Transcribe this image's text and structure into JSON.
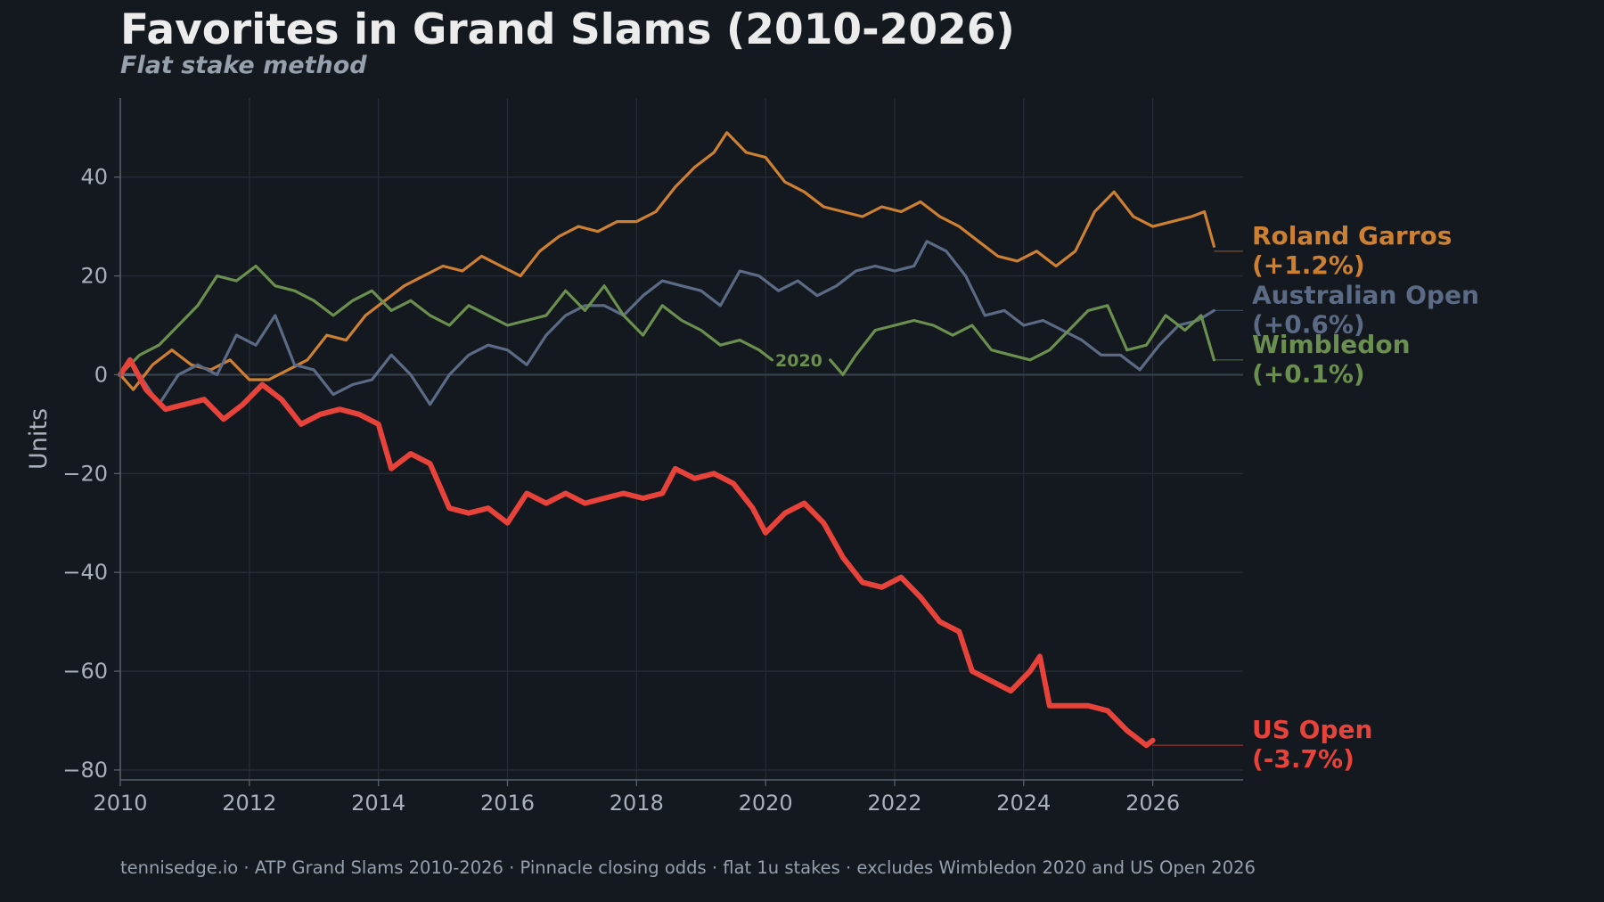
{
  "title": "Favorites in Grand Slams (2010-2026)",
  "subtitle": "Flat stake method",
  "footer": "tennisedge.io · ATP Grand Slams 2010-2026 · Pinnacle closing odds · flat 1u stakes · excludes Wimbledon 2020 and US Open 2026",
  "chart_data": {
    "type": "line",
    "title": "Favorites in Grand Slams (2010-2026)",
    "subtitle": "Flat stake method",
    "xlabel": "",
    "ylabel": "Units",
    "xlim": [
      2010,
      2027.4
    ],
    "ylim": [
      -82,
      56
    ],
    "x_ticks": [
      2010,
      2012,
      2014,
      2016,
      2018,
      2020,
      2022,
      2024,
      2026
    ],
    "x_tick_labels": [
      "2010",
      "2012",
      "2014",
      "2016",
      "2018",
      "2020",
      "2022",
      "2024",
      "2026"
    ],
    "y_ticks": [
      -80,
      -60,
      -40,
      -20,
      0,
      20,
      40
    ],
    "y_tick_labels": [
      "−80",
      "−60",
      "−40",
      "−20",
      "0",
      "20",
      "40"
    ],
    "grid": true,
    "annotations": [
      {
        "text": "2020",
        "x": 2020.15,
        "y": 3
      }
    ],
    "series": [
      {
        "name": "Roland Garros",
        "label_lines": [
          "Roland Garros",
          "(+1.2%)"
        ],
        "color": "#cd7f32",
        "label_y": 25,
        "x": [
          2010,
          2010.2,
          2010.5,
          2010.8,
          2011.1,
          2011.4,
          2011.7,
          2012,
          2012.3,
          2012.6,
          2012.9,
          2013.2,
          2013.5,
          2013.8,
          2014.1,
          2014.4,
          2014.7,
          2015,
          2015.3,
          2015.6,
          2015.9,
          2016.2,
          2016.5,
          2016.8,
          2017.1,
          2017.4,
          2017.7,
          2018,
          2018.3,
          2018.6,
          2018.9,
          2019.2,
          2019.4,
          2019.7,
          2020,
          2020.3,
          2020.6,
          2020.9,
          2021.2,
          2021.5,
          2021.8,
          2022.1,
          2022.4,
          2022.7,
          2023,
          2023.3,
          2023.6,
          2023.9,
          2024.2,
          2024.5,
          2024.8,
          2025.1,
          2025.4,
          2025.7,
          2026,
          2026.3,
          2026.6,
          2026.8,
          2026.95
        ],
        "y": [
          0,
          -3,
          2,
          5,
          2,
          1,
          3,
          -1,
          -1,
          1,
          3,
          8,
          7,
          12,
          15,
          18,
          20,
          22,
          21,
          24,
          22,
          20,
          25,
          28,
          30,
          29,
          31,
          31,
          33,
          38,
          42,
          45,
          49,
          45,
          44,
          39,
          37,
          34,
          33,
          32,
          34,
          33,
          35,
          32,
          30,
          27,
          24,
          23,
          25,
          22,
          25,
          33,
          37,
          32,
          30,
          31,
          32,
          33,
          26
        ]
      },
      {
        "name": "Australian Open",
        "label_lines": [
          "Australian Open",
          "(+0.6%)"
        ],
        "color": "#5b6b85",
        "label_y": 13,
        "x": [
          2010,
          2010.3,
          2010.6,
          2010.9,
          2011.2,
          2011.5,
          2011.8,
          2012.1,
          2012.4,
          2012.7,
          2013,
          2013.3,
          2013.6,
          2013.9,
          2014.2,
          2014.5,
          2014.8,
          2015.1,
          2015.4,
          2015.7,
          2016,
          2016.3,
          2016.6,
          2016.9,
          2017.2,
          2017.5,
          2017.8,
          2018.1,
          2018.4,
          2018.7,
          2019,
          2019.3,
          2019.6,
          2019.9,
          2020.2,
          2020.5,
          2020.8,
          2021.1,
          2021.4,
          2021.7,
          2022,
          2022.3,
          2022.5,
          2022.8,
          2023.1,
          2023.4,
          2023.7,
          2024,
          2024.3,
          2024.6,
          2024.9,
          2025.2,
          2025.5,
          2025.8,
          2026.1,
          2026.4,
          2026.7,
          2026.95
        ],
        "y": [
          0,
          0,
          -6,
          0,
          2,
          0,
          8,
          6,
          12,
          2,
          1,
          -4,
          -2,
          -1,
          4,
          0,
          -6,
          0,
          4,
          6,
          5,
          2,
          8,
          12,
          14,
          14,
          12,
          16,
          19,
          18,
          17,
          14,
          21,
          20,
          17,
          19,
          16,
          18,
          21,
          22,
          21,
          22,
          27,
          25,
          20,
          12,
          13,
          10,
          11,
          9,
          7,
          4,
          4,
          1,
          6,
          10,
          11,
          13
        ]
      },
      {
        "name": "Wimbledon",
        "label_lines": [
          "Wimbledon",
          "(+0.1%)"
        ],
        "color": "#6a8f4e",
        "label_y": 3,
        "x": [
          2010,
          2010.3,
          2010.6,
          2010.9,
          2011.2,
          2011.5,
          2011.8,
          2012.1,
          2012.4,
          2012.7,
          2013,
          2013.3,
          2013.6,
          2013.9,
          2014.2,
          2014.5,
          2014.8,
          2015.1,
          2015.4,
          2015.7,
          2016,
          2016.3,
          2016.6,
          2016.9,
          2017.2,
          2017.5,
          2017.8,
          2018.1,
          2018.4,
          2018.7,
          2019,
          2019.3,
          2019.6,
          2019.9,
          2020.1,
          null,
          2021,
          2021.2,
          2021.4,
          2021.7,
          2022,
          2022.3,
          2022.6,
          2022.9,
          2023.2,
          2023.5,
          2023.8,
          2024.1,
          2024.4,
          2024.7,
          2025,
          2025.3,
          2025.6,
          2025.9,
          2026.2,
          2026.5,
          2026.75,
          2026.95
        ],
        "y": [
          0,
          4,
          6,
          10,
          14,
          20,
          19,
          22,
          18,
          17,
          15,
          12,
          15,
          17,
          13,
          15,
          12,
          10,
          14,
          12,
          10,
          11,
          12,
          17,
          13,
          18,
          12,
          8,
          14,
          11,
          9,
          6,
          7,
          5,
          3,
          null,
          3,
          0,
          4,
          9,
          10,
          11,
          10,
          8,
          10,
          5,
          4,
          3,
          5,
          9,
          13,
          14,
          5,
          6,
          12,
          9,
          12,
          3
        ]
      },
      {
        "name": "US Open",
        "label_lines": [
          "US Open",
          "(-3.7%)"
        ],
        "color": "#e8433a",
        "label_y": -75,
        "x": [
          2010,
          2010.15,
          2010.4,
          2010.7,
          2011,
          2011.3,
          2011.6,
          2011.9,
          2012.2,
          2012.5,
          2012.8,
          2013.1,
          2013.4,
          2013.7,
          2014,
          2014.2,
          2014.5,
          2014.8,
          2015.1,
          2015.4,
          2015.7,
          2016,
          2016.3,
          2016.6,
          2016.9,
          2017.2,
          2017.5,
          2017.8,
          2018.1,
          2018.4,
          2018.6,
          2018.9,
          2019.2,
          2019.5,
          2019.8,
          2020,
          2020.3,
          2020.6,
          2020.9,
          2021.2,
          2021.5,
          2021.8,
          2022.1,
          2022.4,
          2022.7,
          2023,
          2023.2,
          2023.5,
          2023.8,
          2024.1,
          2024.25,
          2024.4,
          2024.7,
          2025,
          2025.3,
          2025.6,
          2025.9,
          2026
        ],
        "y": [
          0,
          3,
          -3,
          -7,
          -6,
          -5,
          -9,
          -6,
          -2,
          -5,
          -10,
          -8,
          -7,
          -8,
          -10,
          -19,
          -16,
          -18,
          -27,
          -28,
          -27,
          -30,
          -24,
          -26,
          -24,
          -26,
          -25,
          -24,
          -25,
          -24,
          -19,
          -21,
          -20,
          -22,
          -27,
          -32,
          -28,
          -26,
          -30,
          -37,
          -42,
          -43,
          -41,
          -45,
          -50,
          -52,
          -60,
          -62,
          -64,
          -60,
          -57,
          -67,
          -67,
          -67,
          -68,
          -72,
          -75,
          -74
        ]
      }
    ]
  }
}
